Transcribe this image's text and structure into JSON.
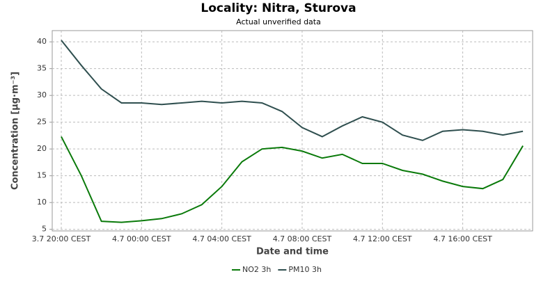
{
  "chart_data": {
    "type": "line",
    "title": "Locality: Nitra, Sturova",
    "subtitle": "Actual unverified data",
    "x_label": "Date and time",
    "y_label": "Concentration [µg·m⁻³]",
    "categories": [
      "3.7 20:00 CEST",
      null,
      null,
      null,
      "4.7 00:00 CEST",
      null,
      null,
      null,
      "4.7 04:00 CEST",
      null,
      null,
      null,
      "4.7 08:00 CEST",
      null,
      null,
      null,
      "4.7 12:00 CEST",
      null,
      null,
      null,
      "4.7 16:00 CEST",
      null,
      null,
      null
    ],
    "series": [
      {
        "name": "NO2 3h",
        "color": "#0a7a0a",
        "values": [
          22.3,
          15,
          6.5,
          6.3,
          6.6,
          7,
          7.9,
          9.6,
          13,
          17.6,
          20,
          20.3,
          19.6,
          18.3,
          19,
          17.3,
          17.3,
          16,
          15.3,
          14,
          13,
          12.6,
          14.3,
          20.6
        ]
      },
      {
        "name": "PM10 3h",
        "color": "#2f4f4f",
        "values": [
          40.3,
          35.6,
          31.2,
          28.6,
          28.6,
          28.3,
          28.6,
          28.9,
          28.6,
          28.9,
          28.6,
          27,
          24,
          22.3,
          24.3,
          26,
          25,
          22.6,
          21.6,
          23.3,
          23.6,
          23.3,
          22.6,
          23.3
        ]
      }
    ],
    "ylim": [
      4.7,
      42.1
    ],
    "yticks": [
      5,
      10,
      15,
      20,
      25,
      30,
      35,
      40
    ],
    "grid": true,
    "legend": "bottom"
  }
}
